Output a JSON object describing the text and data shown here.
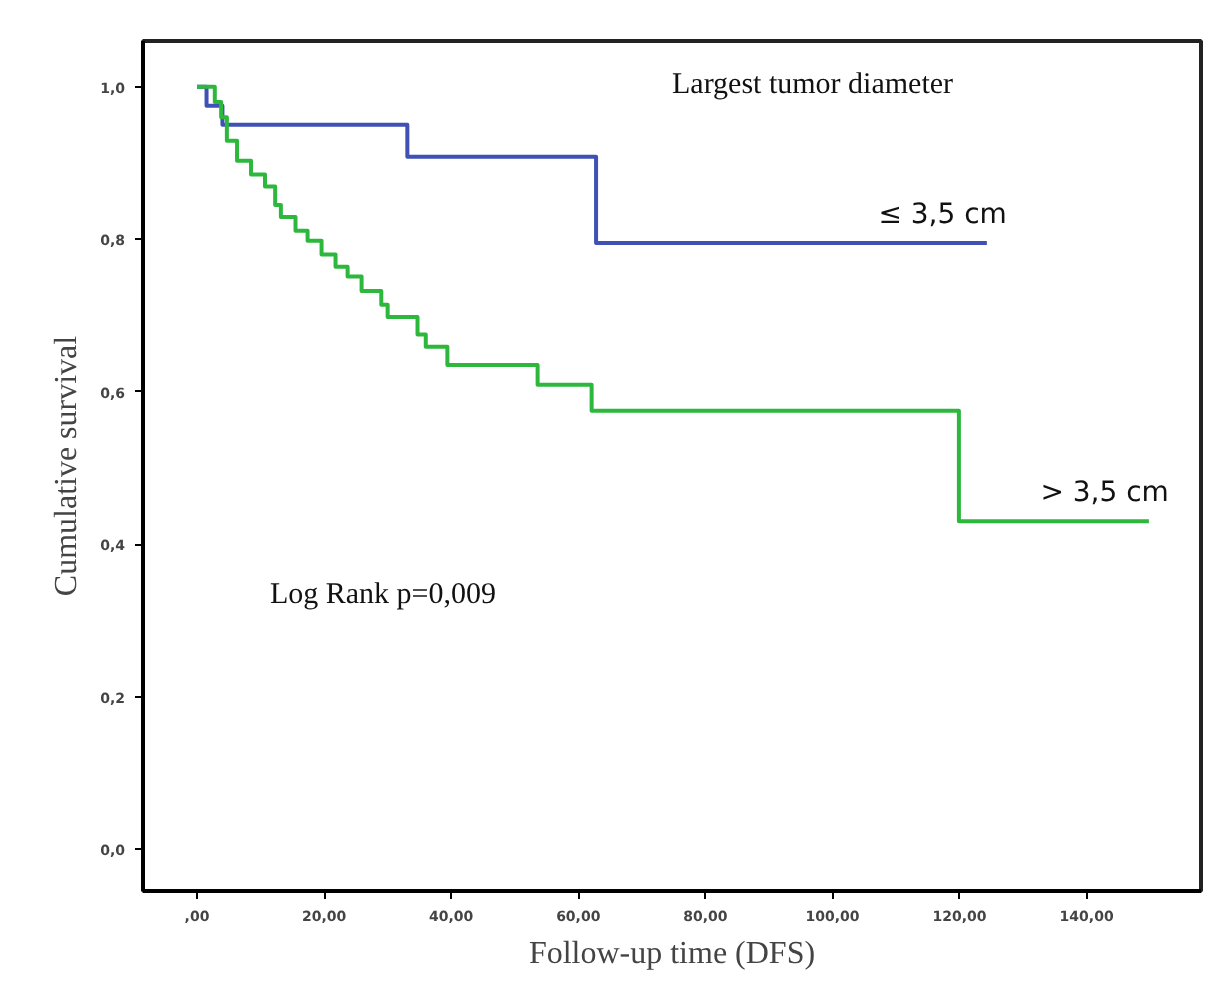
{
  "chart_data": {
    "type": "step",
    "xlabel": "Follow-up time (DFS)",
    "ylabel": "Cumulative survival",
    "annotations": [
      "Largest tumor diameter",
      "Log Rank p=0,009"
    ],
    "xlim": [
      -8.5,
      158
    ],
    "ylim": [
      -0.055,
      1.06
    ],
    "xticks": [
      {
        "value": 0,
        "label": ",00"
      },
      {
        "value": 20,
        "label": "20,00"
      },
      {
        "value": 40,
        "label": "40,00"
      },
      {
        "value": 60,
        "label": "60,00"
      },
      {
        "value": 80,
        "label": "80,00"
      },
      {
        "value": 100,
        "label": "100,00"
      },
      {
        "value": 120,
        "label": "120,00"
      },
      {
        "value": 140,
        "label": "140,00"
      }
    ],
    "yticks": [
      {
        "value": 0,
        "label": "0,0"
      },
      {
        "value": 0.2,
        "label": "0,2"
      },
      {
        "value": 0.4,
        "label": "0,4"
      },
      {
        "value": 0.6,
        "label": "0,6"
      },
      {
        "value": 0.8,
        "label": "0,8"
      },
      {
        "value": 1.0,
        "label": "1,0"
      }
    ],
    "grid": false,
    "legend": false,
    "series": [
      {
        "name": "≤ 3,5 cm",
        "color": "#3f51b5",
        "x": [
          0,
          1.5,
          4,
          33.1,
          62.8,
          124.3
        ],
        "values": [
          1,
          0.975,
          0.95,
          0.908,
          0.795,
          0.795
        ]
      },
      {
        "name": "> 3,5 cm",
        "color": "#2db83d",
        "x": [
          0,
          2.8,
          3.8,
          4.7,
          6.3,
          8.5,
          10.7,
          12.3,
          13.2,
          15.5,
          17.4,
          19.6,
          21.8,
          23.7,
          25.9,
          29,
          30,
          34.7,
          36,
          39.4,
          53.6,
          62.1,
          119.9,
          149.8
        ],
        "values": [
          1,
          0.98,
          0.96,
          0.929,
          0.903,
          0.885,
          0.869,
          0.845,
          0.829,
          0.811,
          0.798,
          0.78,
          0.764,
          0.751,
          0.732,
          0.714,
          0.698,
          0.675,
          0.659,
          0.635,
          0.609,
          0.575,
          0.43,
          0.43
        ]
      }
    ]
  }
}
